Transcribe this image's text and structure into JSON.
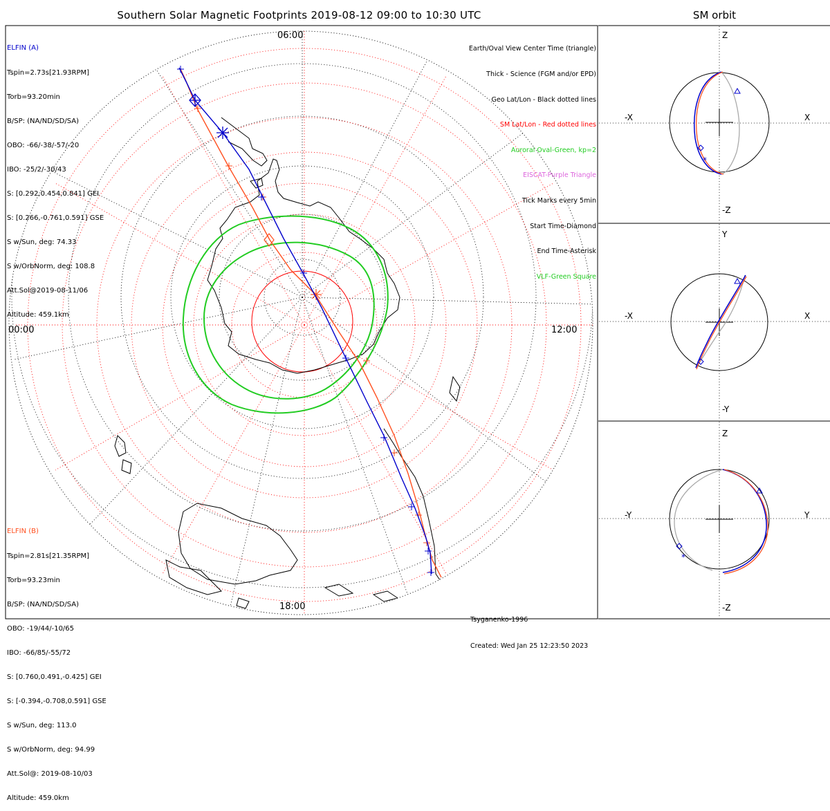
{
  "title": "Southern Solar Magnetic Footprints 2019-08-12 09:00 to 10:30 UTC",
  "orbit_title": "SM orbit",
  "time_labels": {
    "top": "06:00",
    "left": "00:00",
    "right": "12:00",
    "bottom": "18:00"
  },
  "elfin_a": {
    "name": "ELFIN (A)",
    "color": "#0000cc",
    "lines": [
      "Tspin=2.73s[21.93RPM]",
      "Torb=93.20min",
      "B/SP: (NA/ND/SD/SA)",
      "OBO: -66/-38/-57/-20",
      "IBO: -25/2/-30/43",
      "S: [0.292,0.454,0.841] GEI",
      "S: [0.266,-0.761,0.591] GSE",
      "S w/Sun, deg: 74.33",
      "S w/OrbNorm, deg: 108.8",
      "Att.Sol@2019-08-11/06",
      "Altitude: 459.1km"
    ]
  },
  "elfin_b": {
    "name": "ELFIN (B)",
    "color": "#ff5020",
    "lines": [
      "Tspin=2.81s[21.35RPM]",
      "Torb=93.23min",
      "B/SP: (NA/ND/SD/SA)",
      "OBO: -19/44/-10/65",
      "IBO: -66/85/-55/72",
      "S: [0.760,0.491,-0.425] GEI",
      "S: [-0.394,-0.708,0.591] GSE",
      "S w/Sun, deg: 113.0",
      "S w/OrbNorm, deg: 94.99",
      "Att.Sol@: 2019-08-10/03",
      "Altitude: 459.0km"
    ]
  },
  "legend": [
    {
      "text": "Earth/Oval View Center Time (triangle)",
      "color": "#000000"
    },
    {
      "text": "Thick - Science (FGM and/or EPD)",
      "color": "#000000"
    },
    {
      "text": "Geo Lat/Lon - Black dotted lines",
      "color": "#000000"
    },
    {
      "text": "SM Lat/Lon - Red dotted lines",
      "color": "#ff0000"
    },
    {
      "text": "Auroral Oval-Green, kp=2",
      "color": "#22cc22"
    },
    {
      "text": "EISCAT-Purple Triangle",
      "color": "#dd66dd"
    },
    {
      "text": "Tick Marks every 5min",
      "color": "#000000"
    },
    {
      "text": "Start Time-Diamond",
      "color": "#000000"
    },
    {
      "text": "End Time-Asterisk",
      "color": "#000000"
    },
    {
      "text": "VLF-Green Square",
      "color": "#22cc22"
    }
  ],
  "credits": {
    "model": "Tsyganenko-1996",
    "created": "Created: Wed Jan 25 12:23:50 2023"
  },
  "orbit_panels": [
    {
      "h_neg": "-X",
      "h_pos": "X",
      "v_pos": "Z",
      "v_neg": "-Z"
    },
    {
      "h_neg": "-X",
      "h_pos": "X",
      "v_pos": "Y",
      "v_neg": "-Y"
    },
    {
      "h_neg": "-Y",
      "h_pos": "Y",
      "v_pos": "Z",
      "v_neg": "-Z"
    }
  ],
  "colors": {
    "oval": "#22cc22",
    "sm_grid": "#ff0000",
    "track_a": "#0000cc",
    "track_b": "#ff5020",
    "orbit_gray": "#aaaaaa"
  }
}
